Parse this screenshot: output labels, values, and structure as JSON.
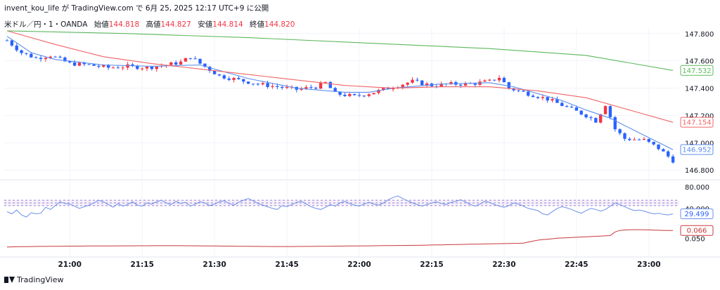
{
  "header": {
    "user": "invent_kou_life",
    "via": "が TradingView.com で 6月 25, 2025 12:17 UTC+9 に公開"
  },
  "ohlc": {
    "symbol": "米ドル／円・1・OANDA",
    "open_label": "始値",
    "open": "144.818",
    "high_label": "高値",
    "high": "144.827",
    "low_label": "安値",
    "low": "144.814",
    "close_label": "終値",
    "close": "144.820"
  },
  "footer": {
    "brand": "TradingView"
  },
  "colors": {
    "up": "#f23645",
    "down": "#2962ff",
    "ma_fast": "#5b8def",
    "ma_mid": "#f06466",
    "ma_slow": "#5cb85c",
    "rsi": "#6b8fe8",
    "osc": "#c8383b"
  },
  "chart_data": [
    {
      "type": "candlestick",
      "title": "",
      "x_ticks": [
        "21:00",
        "21:15",
        "21:30",
        "21:45",
        "22:00",
        "22:15",
        "22:30",
        "22:45",
        "23:00"
      ],
      "y_ticks": [
        "147.800",
        "147.600",
        "147.400",
        "147.200",
        "147.000",
        "146.800"
      ],
      "ylim": [
        146.76,
        147.84
      ],
      "grid": true,
      "price_path": [
        [
          0,
          147.75
        ],
        [
          3,
          147.66
        ],
        [
          6,
          147.62
        ],
        [
          9,
          147.64
        ],
        [
          13,
          147.58
        ],
        [
          17,
          147.57
        ],
        [
          21,
          147.55
        ],
        [
          25,
          147.56
        ],
        [
          29,
          147.55
        ],
        [
          33,
          147.57
        ],
        [
          36,
          147.59
        ],
        [
          38,
          147.63
        ],
        [
          40,
          147.58
        ],
        [
          44,
          147.49
        ],
        [
          48,
          147.46
        ],
        [
          52,
          147.43
        ],
        [
          56,
          147.41
        ],
        [
          60,
          147.39
        ],
        [
          64,
          147.41
        ],
        [
          66,
          147.44
        ],
        [
          68,
          147.36
        ],
        [
          72,
          147.34
        ],
        [
          76,
          147.37
        ],
        [
          80,
          147.41
        ],
        [
          84,
          147.45
        ],
        [
          88,
          147.42
        ],
        [
          92,
          147.43
        ],
        [
          96,
          147.43
        ],
        [
          100,
          147.45
        ],
        [
          102,
          147.48
        ],
        [
          104,
          147.4
        ],
        [
          108,
          147.36
        ],
        [
          112,
          147.32
        ],
        [
          116,
          147.26
        ],
        [
          120,
          147.2
        ],
        [
          122,
          147.16
        ],
        [
          124,
          147.28
        ],
        [
          126,
          147.1
        ],
        [
          128,
          147.03
        ],
        [
          132,
          147.02
        ],
        [
          135,
          146.96
        ],
        [
          138,
          146.87
        ]
      ],
      "series": [
        {
          "name": "",
          "line": "ma_fast",
          "x_last": 138,
          "last_label": "146.952",
          "points": [
            [
              0,
              147.78
            ],
            [
              5,
              147.66
            ],
            [
              10,
              147.61
            ],
            [
              20,
              147.57
            ],
            [
              30,
              147.56
            ],
            [
              40,
              147.57
            ],
            [
              50,
              147.47
            ],
            [
              60,
              147.4
            ],
            [
              70,
              147.37
            ],
            [
              75,
              147.37
            ],
            [
              80,
              147.4
            ],
            [
              90,
              147.43
            ],
            [
              100,
              147.44
            ],
            [
              105,
              147.41
            ],
            [
              115,
              147.31
            ],
            [
              120,
              147.24
            ],
            [
              125,
              147.18
            ],
            [
              130,
              147.09
            ],
            [
              138,
              146.95
            ]
          ]
        },
        {
          "name": "",
          "line": "ma_mid",
          "x_last": 138,
          "last_label": "147.154",
          "points": [
            [
              0,
              147.82
            ],
            [
              10,
              147.72
            ],
            [
              20,
              147.63
            ],
            [
              30,
              147.58
            ],
            [
              40,
              147.54
            ],
            [
              50,
              147.5
            ],
            [
              60,
              147.46
            ],
            [
              70,
              147.42
            ],
            [
              80,
              147.4
            ],
            [
              90,
              147.41
            ],
            [
              100,
              147.41
            ],
            [
              110,
              147.38
            ],
            [
              120,
              147.33
            ],
            [
              130,
              147.23
            ],
            [
              138,
              147.15
            ]
          ]
        },
        {
          "name": "",
          "line": "ma_slow",
          "x_last": 138,
          "last_label": "147.532",
          "points": [
            [
              0,
              147.82
            ],
            [
              25,
              147.8
            ],
            [
              50,
              147.77
            ],
            [
              75,
              147.73
            ],
            [
              100,
              147.69
            ],
            [
              120,
              147.64
            ],
            [
              138,
              147.53
            ]
          ]
        }
      ]
    },
    {
      "type": "line",
      "title": "",
      "y_ticks": [
        "80.000",
        "40.000"
      ],
      "ylim": [
        10,
        90
      ],
      "bands": [
        45,
        50,
        55
      ],
      "series": [
        {
          "name": "",
          "x_last": 138,
          "last_label": "29.499",
          "values": [
            34,
            30,
            37,
            28,
            24,
            32,
            30,
            31,
            42,
            38,
            45,
            52,
            49,
            48,
            44,
            40,
            43,
            46,
            50,
            55,
            52,
            47,
            42,
            49,
            44,
            47,
            52,
            46,
            44,
            50,
            48,
            52,
            55,
            50,
            47,
            53,
            49,
            51,
            44,
            48,
            52,
            50,
            45,
            48,
            52,
            54,
            49,
            46,
            51,
            55,
            58,
            54,
            49,
            46,
            43,
            40,
            38,
            45,
            43,
            47,
            51,
            53,
            48,
            43,
            40,
            38,
            42,
            47,
            44,
            50,
            53,
            49,
            46,
            44,
            48,
            51,
            48,
            46,
            50,
            56,
            60,
            63,
            58,
            54,
            50,
            47,
            44,
            47,
            50,
            52,
            49,
            47,
            51,
            53,
            56,
            52,
            47,
            44,
            48,
            53,
            51,
            47,
            44,
            42,
            45,
            50,
            48,
            44,
            40,
            38,
            36,
            30,
            28,
            34,
            40,
            43,
            41,
            38,
            34,
            31,
            36,
            40,
            38,
            35,
            38,
            44,
            50,
            47,
            43,
            39,
            36,
            37,
            35,
            32,
            30,
            31,
            29,
            28,
            30
          ]
        }
      ]
    },
    {
      "type": "line",
      "title": "",
      "y_ticks": [
        "0.050"
      ],
      "ylim": [
        0.02,
        0.075
      ],
      "series": [
        {
          "name": "",
          "x_last": 138,
          "last_label": "0.066",
          "values": [
            0.032,
            0.0322,
            0.0324,
            0.0326,
            0.0328,
            0.0329,
            0.033,
            0.0331,
            0.0332,
            0.0333,
            0.0334,
            0.0335,
            0.0336,
            0.0337,
            0.0338,
            0.0338,
            0.0339,
            0.034,
            0.034,
            0.0341,
            0.0341,
            0.0342,
            0.0342,
            0.0343,
            0.0343,
            0.0344,
            0.0344,
            0.0345,
            0.0345,
            0.0345,
            0.0346,
            0.0346,
            0.0346,
            0.0346,
            0.0346,
            0.0346,
            0.0346,
            0.0345,
            0.0345,
            0.0344,
            0.0343,
            0.0342,
            0.0341,
            0.034,
            0.0339,
            0.0338,
            0.0337,
            0.0336,
            0.0335,
            0.0334,
            0.0333,
            0.0332,
            0.0331,
            0.033,
            0.033,
            0.0329,
            0.0329,
            0.0329,
            0.0329,
            0.0329,
            0.033,
            0.033,
            0.0331,
            0.0332,
            0.0333,
            0.0334,
            0.0335,
            0.0336,
            0.0337,
            0.0338,
            0.0339,
            0.034,
            0.0341,
            0.0342,
            0.0343,
            0.0344,
            0.0345,
            0.0346,
            0.0347,
            0.0348,
            0.0349,
            0.035,
            0.0351,
            0.0352,
            0.0353,
            0.0354,
            0.0356,
            0.0358,
            0.036,
            0.0362,
            0.0364,
            0.0366,
            0.0368,
            0.037,
            0.0372,
            0.0374,
            0.0376,
            0.0378,
            0.038,
            0.0382,
            0.0384,
            0.0386,
            0.0388,
            0.039,
            0.0392,
            0.0394,
            0.0396,
            0.04,
            0.042,
            0.044,
            0.046,
            0.047,
            0.048,
            0.049,
            0.05,
            0.0505,
            0.051,
            0.0515,
            0.052,
            0.0525,
            0.053,
            0.0535,
            0.054,
            0.0545,
            0.055,
            0.0555,
            0.063,
            0.066,
            0.067,
            0.0675,
            0.0676,
            0.0676,
            0.0675,
            0.0672,
            0.0668,
            0.0665,
            0.0662,
            0.066,
            0.066
          ]
        }
      ]
    }
  ]
}
